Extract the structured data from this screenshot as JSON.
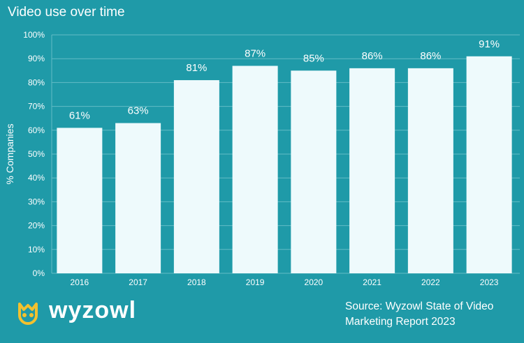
{
  "chart_data": {
    "type": "bar",
    "title": "Video use over time",
    "xlabel": "",
    "ylabel": "% Companies",
    "ylim": [
      0,
      100
    ],
    "yticks": [
      0,
      10,
      20,
      30,
      40,
      50,
      60,
      70,
      80,
      90,
      100
    ],
    "ytick_suffix": "%",
    "grid": true,
    "categories": [
      "2016",
      "2017",
      "2018",
      "2019",
      "2020",
      "2021",
      "2022",
      "2023"
    ],
    "values": [
      61,
      63,
      81,
      87,
      85,
      86,
      86,
      91
    ],
    "data_labels": [
      "61%",
      "63%",
      "81%",
      "87%",
      "85%",
      "86%",
      "86%",
      "91%"
    ]
  },
  "brand": {
    "logo_text": "wyzowl",
    "logo_icon": "owl-icon"
  },
  "source": {
    "line1": "Source: Wyzowl State of Video",
    "line2": "Marketing Report 2023"
  },
  "colors": {
    "background": "#1f9aa8",
    "bar": "#eefafc",
    "grid": "#63bcc6",
    "text": "#ffffff",
    "logo_accent": "#f2c12e"
  }
}
